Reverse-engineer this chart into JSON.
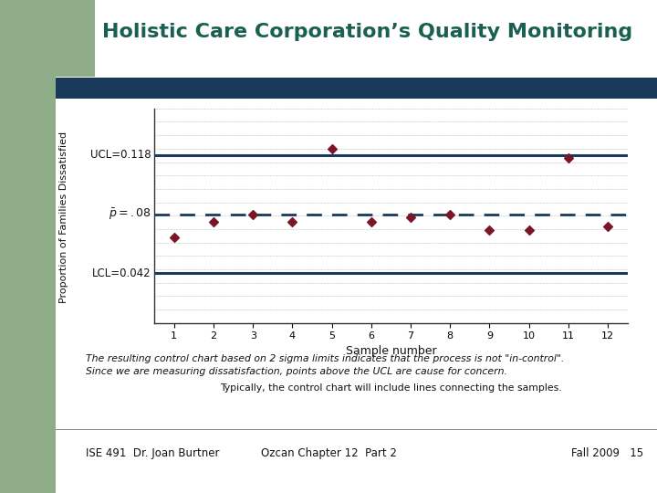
{
  "title": "Holistic Care Corporation’s Quality Monitoring",
  "ylabel": "Proportion of Families Dissatisfied",
  "xlabel": "Sample number",
  "ucl": 0.118,
  "lcl": 0.042,
  "p_bar": 0.08,
  "samples": [
    1,
    2,
    3,
    4,
    5,
    6,
    7,
    8,
    9,
    10,
    11,
    12
  ],
  "values": [
    0.065,
    0.075,
    0.08,
    0.075,
    0.122,
    0.075,
    0.078,
    0.08,
    0.07,
    0.07,
    0.116,
    0.072
  ],
  "ylim_min": 0.01,
  "ylim_max": 0.148,
  "bg_color": "#ffffff",
  "header_bg": "#1a3a5c",
  "title_color": "#1a6050",
  "point_color": "#7b1528",
  "control_line_color": "#1a3a5c",
  "grid_color": "#888888",
  "slide_bg_left": "#8fad88",
  "footnote1": "The resulting control chart based on 2 sigma limits indicates that the process is not \"in-control\".",
  "footnote2": "Since we are measuring dissatisfaction, points above the UCL are cause for concern.",
  "footnote3": "Typically, the control chart will include lines connecting the samples.",
  "footer_left": "ISE 491  Dr. Joan Burtner",
  "footer_center": "Ozcan Chapter 12  Part 2",
  "footer_right": "Fall 2009   15",
  "title_fontsize": 16,
  "axis_label_fontsize": 9,
  "tick_fontsize": 8,
  "footnote_fontsize": 7.8,
  "footer_fontsize": 8.5,
  "label_fontsize": 8.5,
  "ylabel_fontsize": 8
}
